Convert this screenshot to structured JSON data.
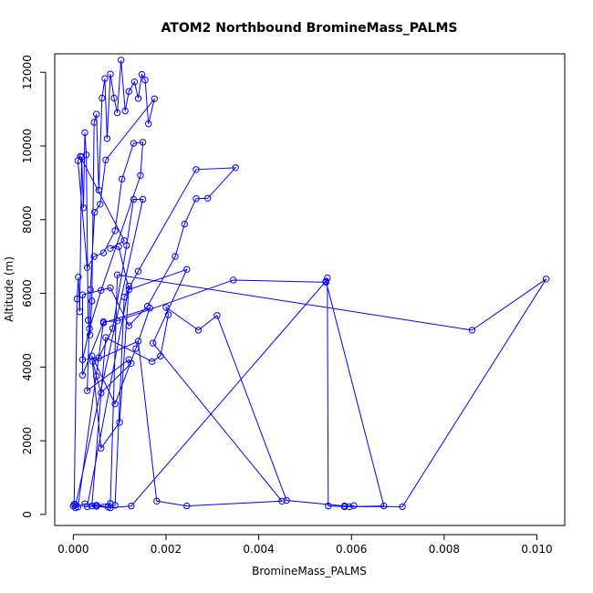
{
  "chart_data": {
    "type": "line",
    "title": "ATOM2 Northbound BromineMass_PALMS",
    "xlabel": "BromineMass_PALMS",
    "ylabel": "Altitude (m)",
    "xlim": [
      -0.0004,
      0.0106
    ],
    "ylim": [
      -300,
      12500
    ],
    "xticks": [
      "0.000",
      "0.002",
      "0.004",
      "0.006",
      "0.008",
      "0.010"
    ],
    "yticks": [
      "0",
      "2000",
      "4000",
      "6000",
      "8000",
      "10000",
      "12000"
    ],
    "grid": false,
    "marker": "open-circle",
    "colors": {
      "series": "#0000ff",
      "axis": "#000000",
      "background": "#ffffff"
    },
    "series": [
      {
        "x": [
          0.0,
          2e-05,
          8e-05,
          0.00011,
          0.00014,
          0.00018,
          0.00022,
          0.00025,
          0.00028,
          0.00032,
          0.00036,
          0.0004,
          0.00045,
          0.0005,
          0.00055,
          0.00062,
          0.00068,
          0.00073,
          0.0008,
          0.00088,
          0.00095,
          0.00103,
          0.00112,
          0.0012,
          0.00132,
          0.0014,
          0.00148,
          0.00155,
          0.00162,
          0.00175,
          0.0007,
          0.00058,
          0.00046,
          0.00037,
          0.0003,
          0.0012,
          0.00125,
          0.0006,
          0.0005,
          0.00042,
          0.0014,
          0.0018,
          0.00245,
          0.0045,
          0.00172,
          0.00245,
          0.0012,
          0.00098,
          0.0008,
          0.0011,
          0.00015,
          0.0001,
          0.0003,
          0.00045,
          0.00065,
          0.0009,
          0.00105,
          0.0013,
          0.0015,
          0.00145,
          0.0006,
          0.00035,
          0.0002,
          0.00055,
          0.00085,
          0.00115,
          0.0013,
          0.0015,
          5e-05,
          5e-05,
          0.00025,
          0.0005,
          0.00075,
          0.0009,
          0.0011,
          0.0014,
          0.00265,
          0.0035,
          0.0029,
          0.00265,
          0.0024,
          0.0022,
          0.0016,
          0.0012,
          0.0008,
          0.0002,
          0.0002,
          0.00065,
          0.00095,
          0.00345,
          0.00545,
          0.00548,
          0.0055,
          0.00595,
          0.00605,
          0.00585,
          0.0046,
          0.0031,
          0.0027,
          0.002,
          0.00205,
          0.00188,
          0.0017,
          0.0007,
          0.0004,
          0.0008,
          0.00095,
          0.0086,
          0.0102,
          0.0071,
          0.00585,
          0.0067,
          0.00545,
          0.00125,
          0.0008,
          0.0005,
          0.0003,
          0.0012,
          0.001,
          0.0006,
          0.0004,
          0.0009,
          0.00135,
          0.00165,
          0.00065,
          0.0001
        ],
        "y": [
          230,
          280,
          5850,
          6440,
          5500,
          9700,
          8320,
          10360,
          9760,
          5270,
          4870,
          5790,
          10640,
          10860,
          8800,
          11300,
          11830,
          10200,
          11950,
          11300,
          10900,
          12330,
          10950,
          11480,
          11740,
          11290,
          11940,
          11790,
          10600,
          11280,
          9620,
          8420,
          8200,
          6100,
          3360,
          4200,
          4100,
          3300,
          3750,
          4150,
          4700,
          360,
          230,
          360,
          4650,
          6650,
          6100,
          7270,
          7220,
          7430,
          9720,
          9600,
          6700,
          7000,
          7100,
          7700,
          9100,
          10070,
          10100,
          9200,
          6080,
          5040,
          4200,
          4250,
          5050,
          7300,
          8550,
          8550,
          260,
          180,
          290,
          250,
          200,
          250,
          5900,
          6600,
          9360,
          9410,
          8580,
          8570,
          7880,
          7000,
          5650,
          5120,
          6150,
          5960,
          3780,
          5230,
          5250,
          6360,
          6300,
          6420,
          230,
          210,
          240,
          230,
          380,
          5400,
          5000,
          5620,
          5420,
          4300,
          4150,
          4800,
          230,
          300,
          6500,
          5000,
          6390,
          210,
          210,
          230,
          6330,
          230,
          180,
          220,
          210,
          6200,
          2500,
          1800,
          4300,
          3000,
          4500,
          5600,
          5200,
          200
        ]
      }
    ]
  }
}
